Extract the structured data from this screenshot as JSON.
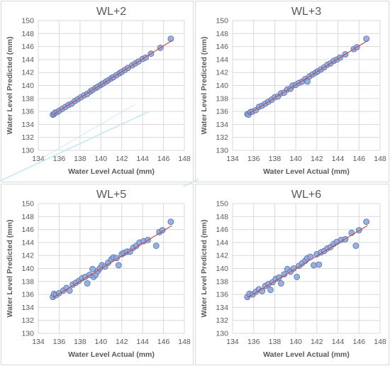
{
  "colors": {
    "marker_fill": "#8fa8dd",
    "marker_stroke": "#4f6fb5",
    "trend_line": "#c0504d",
    "grid": "#d9d9d9",
    "text": "#595959",
    "panel_border": "#d9d9d9"
  },
  "chart_data": [
    {
      "type": "scatter",
      "title": "WL+2",
      "xlabel": "Water Level Actual (mm)",
      "ylabel": "Water Level Predicted (mm)",
      "xlim": [
        134,
        148
      ],
      "ylim": [
        130,
        150
      ],
      "xticks": [
        "134",
        "136",
        "138",
        "140",
        "142",
        "144",
        "146",
        "148"
      ],
      "yticks": [
        "130",
        "132",
        "134",
        "136",
        "138",
        "140",
        "142",
        "144",
        "146",
        "148",
        "150"
      ],
      "grid": true,
      "trendline": {
        "x": [
          135.4,
          146.8
        ],
        "y": [
          135.5,
          146.9
        ]
      },
      "points": [
        [
          135.4,
          135.5
        ],
        [
          135.5,
          135.6
        ],
        [
          135.6,
          135.8
        ],
        [
          135.8,
          135.9
        ],
        [
          136.0,
          136.1
        ],
        [
          136.3,
          136.4
        ],
        [
          136.6,
          136.7
        ],
        [
          136.9,
          137.0
        ],
        [
          137.2,
          137.2
        ],
        [
          137.5,
          137.6
        ],
        [
          137.8,
          137.9
        ],
        [
          138.1,
          138.2
        ],
        [
          138.4,
          138.5
        ],
        [
          138.7,
          138.7
        ],
        [
          139.0,
          139.1
        ],
        [
          139.2,
          139.3
        ],
        [
          139.5,
          139.6
        ],
        [
          139.7,
          139.8
        ],
        [
          140.0,
          140.1
        ],
        [
          140.2,
          140.3
        ],
        [
          140.5,
          140.6
        ],
        [
          140.7,
          140.8
        ],
        [
          141.0,
          141.1
        ],
        [
          141.2,
          141.3
        ],
        [
          141.5,
          141.6
        ],
        [
          141.8,
          141.9
        ],
        [
          142.0,
          142.1
        ],
        [
          142.3,
          142.4
        ],
        [
          142.6,
          142.7
        ],
        [
          143.0,
          143.1
        ],
        [
          143.3,
          143.4
        ],
        [
          143.6,
          143.7
        ],
        [
          144.0,
          144.1
        ],
        [
          144.3,
          144.3
        ],
        [
          144.8,
          144.9
        ],
        [
          145.7,
          145.8
        ],
        [
          146.7,
          147.2
        ]
      ]
    },
    {
      "type": "scatter",
      "title": "WL+3",
      "xlabel": "Water Level Actual (mm)",
      "ylabel": "Water Level Predicted (mm)",
      "xlim": [
        134,
        148
      ],
      "ylim": [
        130,
        150
      ],
      "xticks": [
        "134",
        "136",
        "138",
        "140",
        "142",
        "144",
        "146",
        "148"
      ],
      "yticks": [
        "130",
        "132",
        "134",
        "136",
        "138",
        "140",
        "142",
        "144",
        "146",
        "148",
        "150"
      ],
      "grid": true,
      "trendline": {
        "x": [
          135.4,
          146.8
        ],
        "y": [
          135.5,
          146.9
        ]
      },
      "points": [
        [
          135.4,
          135.6
        ],
        [
          135.5,
          135.5
        ],
        [
          135.7,
          135.9
        ],
        [
          135.9,
          136.0
        ],
        [
          136.2,
          136.2
        ],
        [
          136.5,
          136.7
        ],
        [
          136.8,
          136.9
        ],
        [
          137.1,
          137.2
        ],
        [
          137.4,
          137.5
        ],
        [
          137.7,
          137.8
        ],
        [
          138.0,
          138.2
        ],
        [
          138.3,
          138.3
        ],
        [
          138.6,
          138.8
        ],
        [
          138.9,
          138.9
        ],
        [
          139.2,
          139.4
        ],
        [
          139.5,
          139.5
        ],
        [
          139.7,
          140.0
        ],
        [
          140.0,
          140.1
        ],
        [
          140.3,
          140.4
        ],
        [
          140.6,
          140.6
        ],
        [
          140.9,
          141.0
        ],
        [
          141.1,
          140.6
        ],
        [
          141.3,
          141.4
        ],
        [
          141.6,
          141.7
        ],
        [
          141.9,
          142.0
        ],
        [
          142.1,
          142.2
        ],
        [
          142.4,
          142.5
        ],
        [
          142.7,
          142.8
        ],
        [
          143.0,
          143.2
        ],
        [
          143.3,
          143.4
        ],
        [
          143.6,
          143.8
        ],
        [
          143.9,
          144.0
        ],
        [
          144.2,
          144.3
        ],
        [
          144.7,
          144.8
        ],
        [
          145.5,
          145.6
        ],
        [
          145.8,
          145.9
        ],
        [
          146.7,
          147.2
        ]
      ]
    },
    {
      "type": "scatter",
      "title": "WL+5",
      "xlabel": "Water Level Actual (mm)",
      "ylabel": "Water Level Predicted (mm)",
      "xlim": [
        134,
        148
      ],
      "ylim": [
        130,
        150
      ],
      "xticks": [
        "134",
        "136",
        "138",
        "140",
        "142",
        "144",
        "146",
        "148"
      ],
      "yticks": [
        "130",
        "132",
        "134",
        "136",
        "138",
        "140",
        "142",
        "144",
        "146",
        "148",
        "150"
      ],
      "grid": true,
      "trendline": {
        "x": [
          135.4,
          146.8
        ],
        "y": [
          135.5,
          146.6
        ]
      },
      "points": [
        [
          135.4,
          135.6
        ],
        [
          135.5,
          136.1
        ],
        [
          135.7,
          135.9
        ],
        [
          136.0,
          136.2
        ],
        [
          136.4,
          136.6
        ],
        [
          136.7,
          137.0
        ],
        [
          137.0,
          136.6
        ],
        [
          137.3,
          137.5
        ],
        [
          137.6,
          137.8
        ],
        [
          137.9,
          138.1
        ],
        [
          138.2,
          138.5
        ],
        [
          138.5,
          138.7
        ],
        [
          138.7,
          137.7
        ],
        [
          138.9,
          139.0
        ],
        [
          139.2,
          139.9
        ],
        [
          139.3,
          138.7
        ],
        [
          139.5,
          139.0
        ],
        [
          139.7,
          139.6
        ],
        [
          139.9,
          140.0
        ],
        [
          140.1,
          140.5
        ],
        [
          140.4,
          140.3
        ],
        [
          140.7,
          140.9
        ],
        [
          141.0,
          141.4
        ],
        [
          141.2,
          141.7
        ],
        [
          141.5,
          141.6
        ],
        [
          141.7,
          140.5
        ],
        [
          142.0,
          142.2
        ],
        [
          142.2,
          142.4
        ],
        [
          142.5,
          142.6
        ],
        [
          142.8,
          142.6
        ],
        [
          143.1,
          143.2
        ],
        [
          143.4,
          143.5
        ],
        [
          143.7,
          144.0
        ],
        [
          144.1,
          144.2
        ],
        [
          144.5,
          144.4
        ],
        [
          145.3,
          143.5
        ],
        [
          145.6,
          145.6
        ],
        [
          145.9,
          145.9
        ],
        [
          146.7,
          147.2
        ]
      ]
    },
    {
      "type": "scatter",
      "title": "WL+6",
      "xlabel": "Water Level Actual (mm)",
      "ylabel": "Water Level Predicted (mm)",
      "xlim": [
        134,
        148
      ],
      "ylim": [
        130,
        150
      ],
      "xticks": [
        "134",
        "136",
        "138",
        "140",
        "142",
        "144",
        "146",
        "148"
      ],
      "yticks": [
        "130",
        "132",
        "134",
        "136",
        "138",
        "140",
        "142",
        "144",
        "146",
        "148",
        "150"
      ],
      "grid": true,
      "trendline": {
        "x": [
          135.4,
          146.8
        ],
        "y": [
          135.5,
          146.6
        ]
      },
      "points": [
        [
          135.4,
          135.6
        ],
        [
          135.6,
          136.1
        ],
        [
          135.9,
          136.0
        ],
        [
          136.2,
          136.4
        ],
        [
          136.5,
          136.8
        ],
        [
          136.8,
          136.5
        ],
        [
          137.1,
          137.3
        ],
        [
          137.4,
          137.6
        ],
        [
          137.6,
          136.7
        ],
        [
          137.8,
          137.9
        ],
        [
          138.1,
          138.4
        ],
        [
          138.4,
          138.6
        ],
        [
          138.6,
          137.7
        ],
        [
          138.9,
          139.1
        ],
        [
          139.2,
          139.9
        ],
        [
          139.5,
          139.5
        ],
        [
          139.8,
          140.0
        ],
        [
          140.1,
          138.7
        ],
        [
          140.3,
          140.4
        ],
        [
          140.6,
          140.8
        ],
        [
          140.9,
          141.2
        ],
        [
          141.1,
          141.6
        ],
        [
          141.4,
          141.8
        ],
        [
          141.7,
          140.5
        ],
        [
          142.0,
          142.2
        ],
        [
          142.2,
          140.6
        ],
        [
          142.4,
          142.5
        ],
        [
          142.7,
          142.7
        ],
        [
          143.0,
          143.1
        ],
        [
          143.3,
          143.3
        ],
        [
          143.6,
          143.8
        ],
        [
          143.9,
          144.1
        ],
        [
          144.3,
          144.4
        ],
        [
          144.7,
          144.5
        ],
        [
          145.3,
          145.5
        ],
        [
          145.7,
          143.5
        ],
        [
          146.0,
          145.9
        ],
        [
          146.7,
          147.2
        ]
      ]
    }
  ]
}
